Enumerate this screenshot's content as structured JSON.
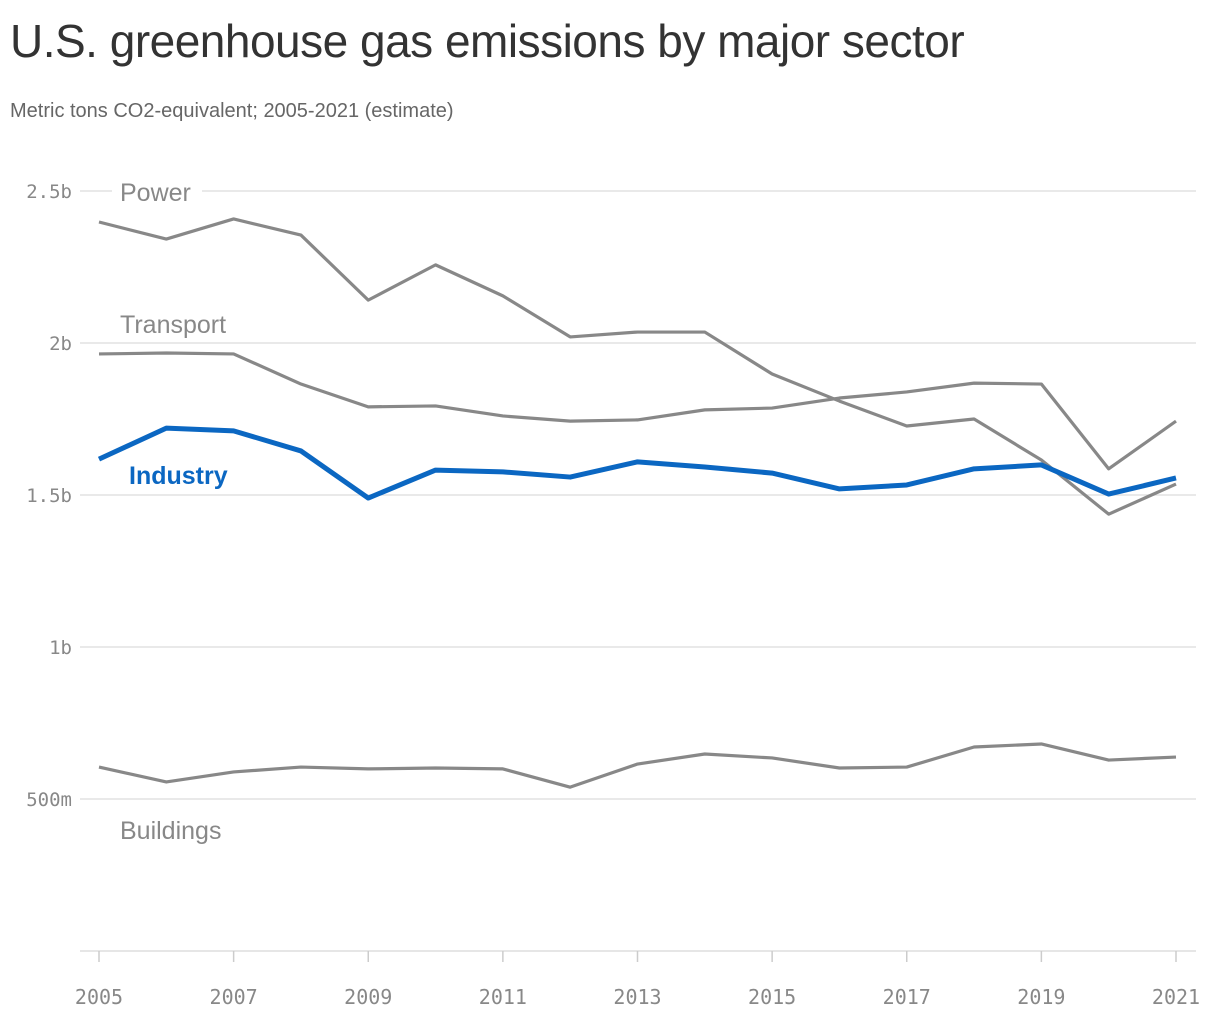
{
  "chart_data": {
    "type": "line",
    "title": "U.S. greenhouse gas emissions by major sector",
    "subtitle": "Metric tons CO2-equivalent; 2005-2021 (estimate)",
    "x": [
      2005,
      2006,
      2007,
      2008,
      2009,
      2010,
      2011,
      2012,
      2013,
      2014,
      2015,
      2016,
      2017,
      2018,
      2019,
      2020,
      2021
    ],
    "xticks": [
      "2005",
      "2007",
      "2009",
      "2011",
      "2013",
      "2015",
      "2017",
      "2019",
      "2021"
    ],
    "yticks": [
      {
        "v": 0.5,
        "label": "500m"
      },
      {
        "v": 1,
        "label": "1b"
      },
      {
        "v": 1.5,
        "label": "1.5b"
      },
      {
        "v": 2,
        "label": "2b"
      },
      {
        "v": 2.5,
        "label": "2.5b"
      }
    ],
    "ylim": [
      0,
      2.5
    ],
    "grid": true,
    "series": [
      {
        "name": "Power",
        "color": "#888888",
        "values": [
          2.398,
          2.342,
          2.408,
          2.355,
          2.141,
          2.257,
          2.155,
          2.02,
          2.036,
          2.036,
          1.898,
          1.809,
          1.727,
          1.75,
          1.615,
          1.437,
          1.536
        ]
      },
      {
        "name": "Transport",
        "color": "#888888",
        "values": [
          1.964,
          1.967,
          1.964,
          1.865,
          1.79,
          1.793,
          1.76,
          1.743,
          1.747,
          1.78,
          1.786,
          1.819,
          1.839,
          1.868,
          1.865,
          1.586,
          1.743
        ]
      },
      {
        "name": "Industry",
        "color": "#0b67c2",
        "values": [
          1.618,
          1.72,
          1.711,
          1.645,
          1.49,
          1.582,
          1.576,
          1.559,
          1.609,
          1.592,
          1.572,
          1.52,
          1.533,
          1.586,
          1.599,
          1.503,
          1.556
        ]
      },
      {
        "name": "Buildings",
        "color": "#888888",
        "values": [
          0.605,
          0.556,
          0.589,
          0.605,
          0.599,
          0.602,
          0.599,
          0.539,
          0.615,
          0.648,
          0.635,
          0.602,
          0.605,
          0.671,
          0.681,
          0.628,
          0.638
        ]
      }
    ]
  }
}
